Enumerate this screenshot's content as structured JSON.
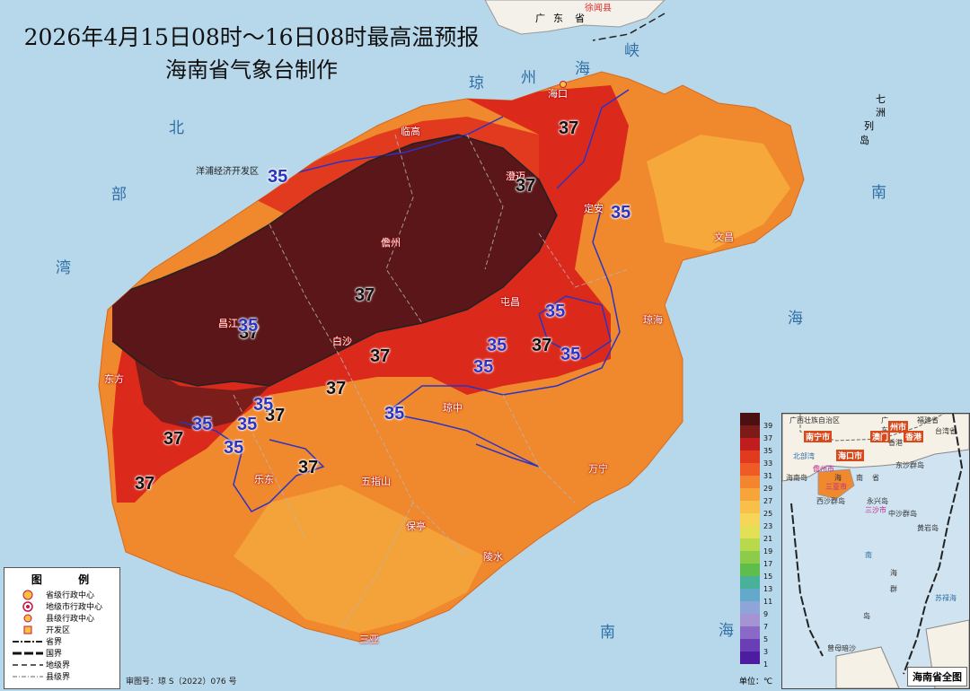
{
  "title": "2026年4月15日08时～16日08时最高温预报",
  "subtitle": "海南省气象台制作",
  "seas": [
    "北",
    "部",
    "湾",
    "琼",
    "州",
    "海",
    "峡",
    "南",
    "海",
    "南",
    "海",
    "七",
    "洲",
    "列",
    "岛"
  ],
  "cities": [
    "海口",
    "临高",
    "澄迈",
    "定安",
    "文昌",
    "儋州",
    "屯昌",
    "琼海",
    "昌江",
    "白沙",
    "东方",
    "琼中",
    "乐东",
    "五指山",
    "万宁",
    "保亭",
    "陵水",
    "三亚",
    "洋浦经济开发区"
  ],
  "mainland": [
    "广",
    "东",
    "省",
    "徐闻县"
  ],
  "isotherm_labels": [
    "37",
    "37",
    "37",
    "37",
    "37",
    "37",
    "37",
    "37",
    "37",
    "37",
    "37",
    "35",
    "35",
    "35",
    "35",
    "35",
    "35",
    "35",
    "35",
    "35",
    "35",
    "35",
    "35"
  ],
  "legend": {
    "title": "图 例",
    "items": [
      "省级行政中心",
      "地级市行政中心",
      "县级行政中心",
      "开发区",
      "省界",
      "国界",
      "地级界",
      "县级界"
    ]
  },
  "approval": "审图号：琼 S（2022）076 号",
  "colorbar": {
    "ticks": [
      "39",
      "37",
      "35",
      "33",
      "31",
      "29",
      "27",
      "25",
      "23",
      "21",
      "19",
      "17",
      "15",
      "13",
      "11",
      "9",
      "7",
      "5",
      "3",
      "1"
    ],
    "unit": "单位：℃"
  },
  "inset": {
    "title": "海南省全图",
    "labels": [
      "广西壮族自治区",
      "广",
      "东",
      "福建省",
      "台湾省",
      "香港",
      "北部湾",
      "海南岛",
      "海",
      "南",
      "省",
      "东沙群岛",
      "西沙群岛",
      "永兴岛",
      "中沙群岛",
      "黄岩岛",
      "南",
      "海",
      "群",
      "岛",
      "苏禄海",
      "曾母暗沙"
    ],
    "cities": [
      "南宁市",
      "海口市",
      "澳门",
      "州市",
      "香港"
    ],
    "pink": [
      "儋州市",
      "三亚市",
      "三沙市"
    ]
  }
}
